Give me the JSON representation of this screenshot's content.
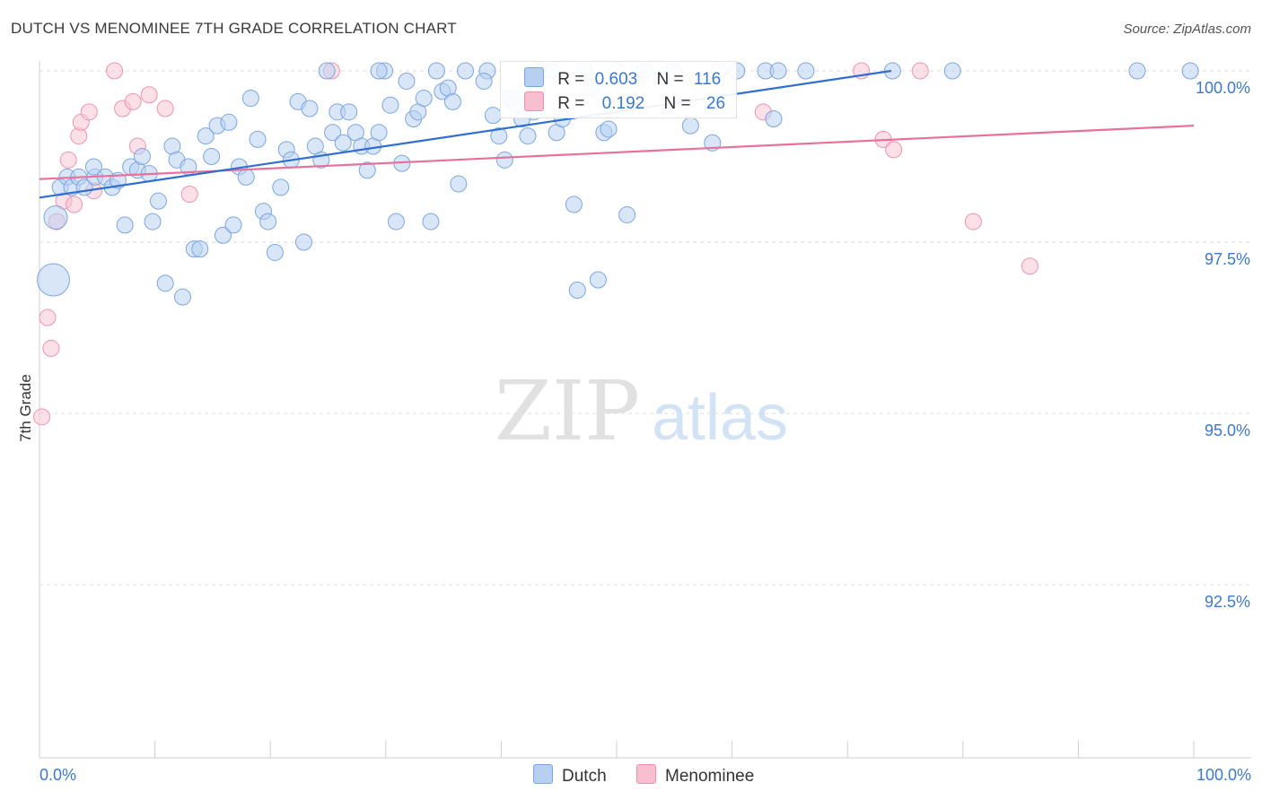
{
  "header": {
    "title": "DUTCH VS MENOMINEE 7TH GRADE CORRELATION CHART",
    "source": "Source: ZipAtlas.com"
  },
  "watermark": {
    "zip": "ZIP",
    "atlas": "atlas"
  },
  "legend": {
    "series": [
      {
        "name": "Dutch",
        "r_label": "R =",
        "r_value": "0.603",
        "n_label": "N =",
        "n_value": "116",
        "fill": "#b7d0f2",
        "stroke": "#7aa5e0"
      },
      {
        "name": "Menominee",
        "r_label": "R =",
        "r_value": "0.192",
        "n_label": "N =",
        "n_value": "26",
        "fill": "#f7bfd0",
        "stroke": "#ee8fae"
      }
    ]
  },
  "colors": {
    "dutch_fill": "#b9d2f3",
    "dutch_stroke": "#7ba6e1",
    "dutch_line": "#2f6fd0",
    "menominee_fill": "#f8c7d6",
    "menominee_stroke": "#ef93b1",
    "menominee_line": "#e8709a",
    "grid": "#dcdcdc",
    "tick_label": "#3a78d4"
  },
  "chart_data": {
    "type": "scatter",
    "title": "DUTCH VS MENOMINEE 7TH GRADE CORRELATION CHART",
    "xlabel": "",
    "ylabel": "7th Grade",
    "xlim": [
      0,
      100
    ],
    "ylim": [
      90.3,
      100.4
    ],
    "x_tick_labels": [
      "0.0%",
      "100.0%"
    ],
    "y_ticks": [
      100.0,
      97.5,
      95.0,
      92.5
    ],
    "y_tick_labels": [
      "100.0%",
      "97.5%",
      "95.0%",
      "92.5%"
    ],
    "grid": true,
    "series": [
      {
        "name": "Dutch",
        "trend": {
          "x0": 0,
          "y0": 98.15,
          "x1": 73.8,
          "y1": 100.0
        },
        "points": [
          {
            "x": 1.4,
            "y": 97.86,
            "s": 2
          },
          {
            "x": 1.2,
            "y": 96.95,
            "s": 3
          },
          {
            "x": 1.8,
            "y": 98.3,
            "s": 1
          },
          {
            "x": 2.4,
            "y": 98.45,
            "s": 1
          },
          {
            "x": 2.8,
            "y": 98.3,
            "s": 1
          },
          {
            "x": 3.4,
            "y": 98.45,
            "s": 1
          },
          {
            "x": 3.9,
            "y": 98.3,
            "s": 1
          },
          {
            "x": 4.8,
            "y": 98.45,
            "s": 1
          },
          {
            "x": 4.7,
            "y": 98.6,
            "s": 1
          },
          {
            "x": 5.7,
            "y": 98.45,
            "s": 1
          },
          {
            "x": 6.3,
            "y": 98.3,
            "s": 1
          },
          {
            "x": 6.8,
            "y": 98.4,
            "s": 1
          },
          {
            "x": 7.4,
            "y": 97.75,
            "s": 1
          },
          {
            "x": 7.9,
            "y": 98.6,
            "s": 1
          },
          {
            "x": 8.5,
            "y": 98.55,
            "s": 1
          },
          {
            "x": 8.9,
            "y": 98.75,
            "s": 1
          },
          {
            "x": 9.5,
            "y": 98.5,
            "s": 1
          },
          {
            "x": 9.8,
            "y": 97.8,
            "s": 1
          },
          {
            "x": 10.3,
            "y": 98.1,
            "s": 1
          },
          {
            "x": 10.9,
            "y": 96.9,
            "s": 1
          },
          {
            "x": 11.5,
            "y": 98.9,
            "s": 1
          },
          {
            "x": 11.9,
            "y": 98.7,
            "s": 1
          },
          {
            "x": 12.4,
            "y": 96.7,
            "s": 1
          },
          {
            "x": 12.9,
            "y": 98.6,
            "s": 1
          },
          {
            "x": 13.4,
            "y": 97.4,
            "s": 1
          },
          {
            "x": 13.9,
            "y": 97.4,
            "s": 1
          },
          {
            "x": 14.4,
            "y": 99.05,
            "s": 1
          },
          {
            "x": 14.9,
            "y": 98.75,
            "s": 1
          },
          {
            "x": 15.4,
            "y": 99.2,
            "s": 1
          },
          {
            "x": 15.9,
            "y": 97.6,
            "s": 1
          },
          {
            "x": 16.4,
            "y": 99.25,
            "s": 1
          },
          {
            "x": 16.8,
            "y": 97.75,
            "s": 1
          },
          {
            "x": 17.3,
            "y": 98.6,
            "s": 1
          },
          {
            "x": 17.9,
            "y": 98.45,
            "s": 1
          },
          {
            "x": 18.3,
            "y": 99.6,
            "s": 1
          },
          {
            "x": 18.9,
            "y": 99.0,
            "s": 1
          },
          {
            "x": 19.4,
            "y": 97.95,
            "s": 1
          },
          {
            "x": 19.8,
            "y": 97.8,
            "s": 1
          },
          {
            "x": 20.4,
            "y": 97.35,
            "s": 1
          },
          {
            "x": 20.9,
            "y": 98.3,
            "s": 1
          },
          {
            "x": 21.4,
            "y": 98.85,
            "s": 1
          },
          {
            "x": 21.8,
            "y": 98.7,
            "s": 1
          },
          {
            "x": 22.4,
            "y": 99.55,
            "s": 1
          },
          {
            "x": 22.9,
            "y": 97.5,
            "s": 1
          },
          {
            "x": 23.4,
            "y": 99.45,
            "s": 1
          },
          {
            "x": 23.9,
            "y": 98.9,
            "s": 1
          },
          {
            "x": 24.4,
            "y": 98.7,
            "s": 1
          },
          {
            "x": 24.9,
            "y": 100.0,
            "s": 1
          },
          {
            "x": 25.4,
            "y": 99.1,
            "s": 1
          },
          {
            "x": 25.8,
            "y": 99.4,
            "s": 1
          },
          {
            "x": 26.3,
            "y": 98.95,
            "s": 1
          },
          {
            "x": 26.8,
            "y": 99.4,
            "s": 1
          },
          {
            "x": 27.4,
            "y": 99.1,
            "s": 1
          },
          {
            "x": 27.9,
            "y": 98.9,
            "s": 1
          },
          {
            "x": 28.4,
            "y": 98.55,
            "s": 1
          },
          {
            "x": 28.9,
            "y": 98.9,
            "s": 1
          },
          {
            "x": 29.4,
            "y": 99.1,
            "s": 1
          },
          {
            "x": 29.9,
            "y": 100.0,
            "s": 1
          },
          {
            "x": 30.4,
            "y": 99.5,
            "s": 1
          },
          {
            "x": 30.9,
            "y": 97.8,
            "s": 1
          },
          {
            "x": 31.4,
            "y": 98.65,
            "s": 1
          },
          {
            "x": 31.8,
            "y": 99.85,
            "s": 1
          },
          {
            "x": 32.4,
            "y": 99.3,
            "s": 1
          },
          {
            "x": 32.8,
            "y": 99.4,
            "s": 1
          },
          {
            "x": 33.3,
            "y": 99.6,
            "s": 1
          },
          {
            "x": 33.9,
            "y": 97.8,
            "s": 1
          },
          {
            "x": 34.4,
            "y": 100.0,
            "s": 1
          },
          {
            "x": 34.9,
            "y": 99.7,
            "s": 1
          },
          {
            "x": 35.4,
            "y": 99.75,
            "s": 1
          },
          {
            "x": 35.8,
            "y": 99.55,
            "s": 1
          },
          {
            "x": 36.3,
            "y": 98.35,
            "s": 1
          },
          {
            "x": 36.9,
            "y": 100.0,
            "s": 1
          },
          {
            "x": 38.8,
            "y": 100.0,
            "s": 1
          },
          {
            "x": 39.3,
            "y": 99.35,
            "s": 1
          },
          {
            "x": 39.8,
            "y": 99.05,
            "s": 1
          },
          {
            "x": 40.3,
            "y": 98.7,
            "s": 1
          },
          {
            "x": 40.8,
            "y": 99.6,
            "s": 1
          },
          {
            "x": 41.3,
            "y": 99.5,
            "s": 1
          },
          {
            "x": 41.8,
            "y": 99.3,
            "s": 1
          },
          {
            "x": 42.3,
            "y": 99.05,
            "s": 1
          },
          {
            "x": 42.8,
            "y": 99.4,
            "s": 1
          },
          {
            "x": 43.3,
            "y": 100.0,
            "s": 1
          },
          {
            "x": 44.3,
            "y": 100.0,
            "s": 1
          },
          {
            "x": 44.8,
            "y": 99.1,
            "s": 1
          },
          {
            "x": 45.3,
            "y": 99.3,
            "s": 1
          },
          {
            "x": 46.3,
            "y": 98.05,
            "s": 1
          },
          {
            "x": 46.6,
            "y": 96.8,
            "s": 1
          },
          {
            "x": 47.8,
            "y": 99.75,
            "s": 1
          },
          {
            "x": 48.4,
            "y": 96.95,
            "s": 1
          },
          {
            "x": 48.9,
            "y": 99.1,
            "s": 1
          },
          {
            "x": 49.3,
            "y": 99.15,
            "s": 1
          },
          {
            "x": 50.9,
            "y": 97.9,
            "s": 1
          },
          {
            "x": 52.4,
            "y": 100.0,
            "s": 1
          },
          {
            "x": 53.9,
            "y": 99.9,
            "s": 1
          },
          {
            "x": 54.9,
            "y": 100.0,
            "s": 1
          },
          {
            "x": 56.4,
            "y": 99.2,
            "s": 1
          },
          {
            "x": 58.3,
            "y": 98.95,
            "s": 1
          },
          {
            "x": 58.9,
            "y": 100.0,
            "s": 1
          },
          {
            "x": 60.4,
            "y": 100.0,
            "s": 1
          },
          {
            "x": 62.9,
            "y": 100.0,
            "s": 1
          },
          {
            "x": 63.6,
            "y": 99.3,
            "s": 1
          },
          {
            "x": 64.0,
            "y": 100.0,
            "s": 1
          },
          {
            "x": 66.4,
            "y": 100.0,
            "s": 1
          },
          {
            "x": 73.9,
            "y": 100.0,
            "s": 1
          },
          {
            "x": 79.1,
            "y": 100.0,
            "s": 1
          },
          {
            "x": 95.1,
            "y": 100.0,
            "s": 1
          },
          {
            "x": 99.7,
            "y": 100.0,
            "s": 1
          },
          {
            "x": 47.2,
            "y": 100.0,
            "s": 1
          },
          {
            "x": 50.0,
            "y": 100.0,
            "s": 1
          },
          {
            "x": 38.5,
            "y": 99.85,
            "s": 1
          },
          {
            "x": 29.4,
            "y": 100.0,
            "s": 1
          },
          {
            "x": 40.9,
            "y": 99.6,
            "s": 1
          }
        ]
      },
      {
        "name": "Menominee",
        "trend": {
          "x0": 0,
          "y0": 98.42,
          "x1": 100,
          "y1": 99.2
        },
        "points": [
          {
            "x": 0.2,
            "y": 94.95,
            "s": 1
          },
          {
            "x": 0.7,
            "y": 96.4,
            "s": 1
          },
          {
            "x": 1.0,
            "y": 95.95,
            "s": 1
          },
          {
            "x": 1.5,
            "y": 97.8,
            "s": 1
          },
          {
            "x": 2.1,
            "y": 98.1,
            "s": 1
          },
          {
            "x": 2.5,
            "y": 98.7,
            "s": 1
          },
          {
            "x": 3.0,
            "y": 98.05,
            "s": 1
          },
          {
            "x": 3.4,
            "y": 99.05,
            "s": 1
          },
          {
            "x": 3.6,
            "y": 99.25,
            "s": 1
          },
          {
            "x": 4.3,
            "y": 99.4,
            "s": 1
          },
          {
            "x": 4.7,
            "y": 98.25,
            "s": 1
          },
          {
            "x": 6.5,
            "y": 100.0,
            "s": 1
          },
          {
            "x": 7.2,
            "y": 99.45,
            "s": 1
          },
          {
            "x": 8.1,
            "y": 99.55,
            "s": 1
          },
          {
            "x": 8.5,
            "y": 98.9,
            "s": 1
          },
          {
            "x": 9.5,
            "y": 99.65,
            "s": 1
          },
          {
            "x": 10.9,
            "y": 99.45,
            "s": 1
          },
          {
            "x": 13.0,
            "y": 98.2,
            "s": 1
          },
          {
            "x": 25.3,
            "y": 100.0,
            "s": 1
          },
          {
            "x": 62.7,
            "y": 99.4,
            "s": 1
          },
          {
            "x": 71.2,
            "y": 100.0,
            "s": 1
          },
          {
            "x": 73.1,
            "y": 99.0,
            "s": 1
          },
          {
            "x": 74.0,
            "y": 98.85,
            "s": 1
          },
          {
            "x": 76.3,
            "y": 100.0,
            "s": 1
          },
          {
            "x": 80.9,
            "y": 97.8,
            "s": 1
          },
          {
            "x": 85.8,
            "y": 97.15,
            "s": 1
          }
        ]
      }
    ]
  }
}
